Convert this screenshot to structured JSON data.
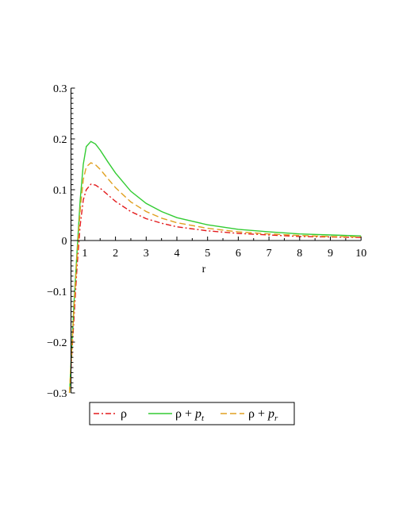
{
  "chart_data": {
    "type": "line",
    "title": "",
    "xlabel": "r",
    "ylabel": "",
    "xlim": [
      0.3,
      10
    ],
    "ylim": [
      -0.3,
      0.3
    ],
    "x_ticks": [
      1,
      2,
      3,
      4,
      5,
      6,
      7,
      8,
      9,
      10
    ],
    "x_tick_labels": [
      "1",
      "2",
      "3",
      "4",
      "5",
      "6",
      "7",
      "8",
      "9",
      "10"
    ],
    "y_ticks": [
      -0.3,
      -0.2,
      -0.1,
      0,
      0.1,
      0.2,
      0.3
    ],
    "y_tick_labels": [
      "-0.3",
      "-0.2",
      "-0.1",
      "0",
      "0.1",
      "0.2",
      "0.3"
    ],
    "grid": false,
    "legend_position": "bottom",
    "series": [
      {
        "name": "ρ",
        "legend_sub": "",
        "color": "#e31a1c",
        "dash": "dashdot",
        "x": [
          0.5,
          0.65,
          0.75,
          0.85,
          0.95,
          1.05,
          1.2,
          1.35,
          1.5,
          1.75,
          2,
          2.5,
          3,
          3.5,
          4,
          5,
          6,
          7,
          8,
          9,
          10
        ],
        "y": [
          -0.3,
          -0.15,
          -0.05,
          0.03,
          0.08,
          0.1,
          0.111,
          0.109,
          0.103,
          0.09,
          0.077,
          0.057,
          0.043,
          0.034,
          0.027,
          0.019,
          0.014,
          0.011,
          0.008,
          0.007,
          0.006
        ]
      },
      {
        "name": "ρ + ",
        "legend_sub": "t",
        "color": "#33cc33",
        "dash": "solid",
        "x": [
          0.5,
          0.65,
          0.75,
          0.85,
          0.95,
          1.05,
          1.2,
          1.35,
          1.5,
          1.75,
          2,
          2.5,
          3,
          3.5,
          4,
          5,
          6,
          7,
          8,
          9,
          10
        ],
        "y": [
          -0.3,
          -0.12,
          -0.02,
          0.08,
          0.15,
          0.185,
          0.195,
          0.19,
          0.178,
          0.155,
          0.133,
          0.097,
          0.073,
          0.057,
          0.045,
          0.031,
          0.022,
          0.017,
          0.013,
          0.011,
          0.009
        ]
      },
      {
        "name": "ρ + ",
        "legend_sub": "r",
        "color": "#e0a020",
        "dash": "dashed",
        "x": [
          0.5,
          0.65,
          0.75,
          0.85,
          0.95,
          1.05,
          1.2,
          1.35,
          1.5,
          1.75,
          2,
          2.5,
          3,
          3.5,
          4,
          5,
          6,
          7,
          8,
          9,
          10
        ],
        "y": [
          -0.3,
          -0.13,
          -0.03,
          0.06,
          0.12,
          0.145,
          0.153,
          0.149,
          0.14,
          0.122,
          0.104,
          0.076,
          0.057,
          0.044,
          0.035,
          0.024,
          0.017,
          0.013,
          0.01,
          0.008,
          0.007
        ]
      }
    ]
  }
}
